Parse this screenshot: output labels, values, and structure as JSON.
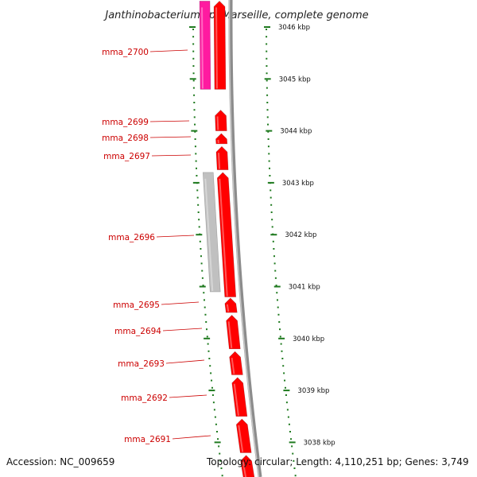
{
  "title": "Janthinobacterium sp. Marseille, complete genome",
  "footer": {
    "accession": "Accession: NC_009659",
    "summary": "Topology: circular; Length: 4,110,251 bp; Genes: 3,749"
  },
  "colors": {
    "gene_red": "#ff0000",
    "gene_pink": "#ff1aa0",
    "gene_gray": "#c0c0c0",
    "backbone": "#8c8c8c",
    "tick_green": "#1f7a1f",
    "label_red": "#cc0000"
  },
  "scale_labels": [
    "3046 kbp",
    "3045 kbp",
    "3044 kbp",
    "3043 kbp",
    "3042 kbp",
    "3041 kbp",
    "3040 kbp",
    "3039 kbp",
    "3038 kbp"
  ],
  "genes": [
    {
      "name": "mma_2700",
      "color": "pink",
      "lane": "outer",
      "start_kbp": 3046.5,
      "end_kbp": 3044.8
    },
    {
      "name": "",
      "color": "red",
      "lane": "inner",
      "start_kbp": 3046.5,
      "end_kbp": 3044.8
    },
    {
      "name": "mma_2699",
      "color": "red",
      "lane": "inner",
      "start_kbp": 3044.4,
      "end_kbp": 3044.0
    },
    {
      "name": "mma_2698",
      "color": "red",
      "lane": "inner",
      "start_kbp": 3043.95,
      "end_kbp": 3043.75
    },
    {
      "name": "mma_2697",
      "color": "red",
      "lane": "inner",
      "start_kbp": 3043.7,
      "end_kbp": 3043.25
    },
    {
      "name": "mma_2696",
      "color": "gray",
      "lane": "outer",
      "start_kbp": 3043.2,
      "end_kbp": 3040.9
    },
    {
      "name": "",
      "color": "red",
      "lane": "inner",
      "start_kbp": 3043.2,
      "end_kbp": 3040.8
    },
    {
      "name": "mma_2695",
      "color": "red",
      "lane": "inner",
      "start_kbp": 3040.78,
      "end_kbp": 3040.5
    },
    {
      "name": "mma_2694",
      "color": "red",
      "lane": "inner",
      "start_kbp": 3040.45,
      "end_kbp": 3039.8
    },
    {
      "name": "mma_2693",
      "color": "red",
      "lane": "inner",
      "start_kbp": 3039.75,
      "end_kbp": 3039.3
    },
    {
      "name": "mma_2692",
      "color": "red",
      "lane": "inner",
      "start_kbp": 3039.25,
      "end_kbp": 3038.5
    },
    {
      "name": "mma_2691",
      "color": "red",
      "lane": "inner",
      "start_kbp": 3038.45,
      "end_kbp": 3037.8
    },
    {
      "name": "",
      "color": "red",
      "lane": "inner",
      "start_kbp": 3037.75,
      "end_kbp": 3037.3
    }
  ]
}
